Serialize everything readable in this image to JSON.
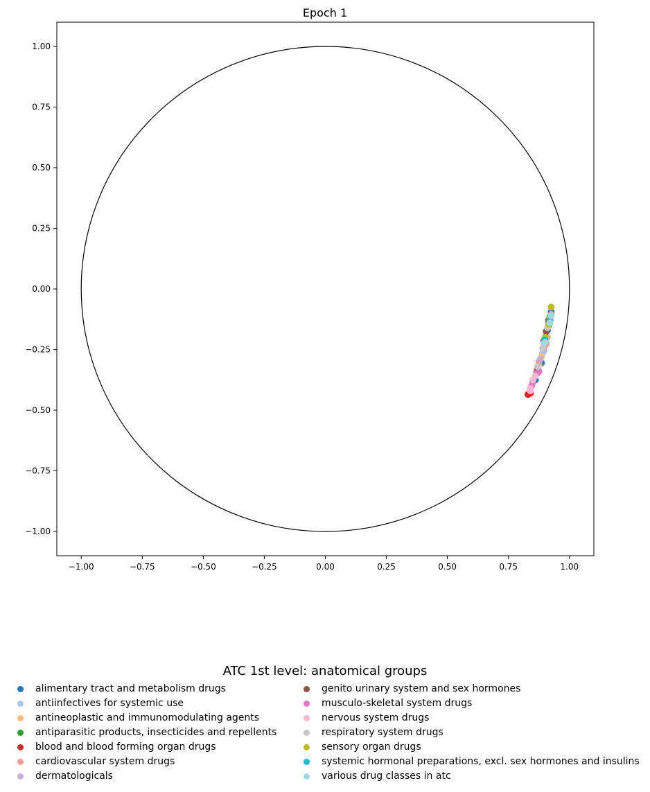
{
  "chart_data": {
    "type": "scatter",
    "title": "Epoch 1",
    "xlim": [
      -1.1,
      1.1
    ],
    "ylim": [
      -1.1,
      1.1
    ],
    "xticks": [
      -1.0,
      -0.75,
      -0.5,
      -0.25,
      0.0,
      0.25,
      0.5,
      0.75,
      1.0
    ],
    "yticks": [
      -1.0,
      -0.75,
      -0.5,
      -0.25,
      0.0,
      0.25,
      0.5,
      0.75,
      1.0
    ],
    "xtick_labels": [
      "−1.00",
      "−0.75",
      "−0.50",
      "−0.25",
      "0.00",
      "0.25",
      "0.50",
      "0.75",
      "1.00"
    ],
    "ytick_labels": [
      "−1.00",
      "−0.75",
      "−0.50",
      "−0.25",
      "0.00",
      "0.25",
      "0.50",
      "0.75",
      "1.00"
    ],
    "unit_circle": {
      "center": [
        0,
        0
      ],
      "radius": 1.0
    },
    "grid": false,
    "legend": {
      "title": "ATC 1st level: anatomical groups",
      "placement": "below",
      "columns": 2
    },
    "series": [
      {
        "name": "alimentary tract and metabolism drugs",
        "color": "#1f77b4",
        "points": [
          [
            0.925,
            -0.095
          ],
          [
            0.91,
            -0.17
          ],
          [
            0.885,
            -0.305
          ],
          [
            0.86,
            -0.375
          ],
          [
            0.915,
            -0.15
          ]
        ]
      },
      {
        "name": "antiinfectives for systemic use",
        "color": "#aec7e8",
        "points": [
          [
            0.92,
            -0.135
          ],
          [
            0.905,
            -0.19
          ],
          [
            0.89,
            -0.265
          ],
          [
            0.895,
            -0.255
          ],
          [
            0.915,
            -0.125
          ]
        ]
      },
      {
        "name": "antineoplastic and immunomodulating agents",
        "color": "#ffbb78",
        "points": [
          [
            0.91,
            -0.2
          ],
          [
            0.885,
            -0.28
          ],
          [
            0.875,
            -0.31
          ],
          [
            0.9,
            -0.235
          ]
        ]
      },
      {
        "name": "antiparasitic products, insecticides and repellents",
        "color": "#2ca02c",
        "points": [
          [
            0.92,
            -0.115
          ],
          [
            0.9,
            -0.205
          ],
          [
            0.915,
            -0.14
          ]
        ]
      },
      {
        "name": "blood and blood forming organ drugs",
        "color": "#d62728",
        "points": [
          [
            0.83,
            -0.435
          ],
          [
            0.84,
            -0.43
          ],
          [
            0.87,
            -0.345
          ]
        ]
      },
      {
        "name": "cardiovascular system drugs",
        "color": "#ff9896",
        "points": [
          [
            0.925,
            -0.105
          ],
          [
            0.905,
            -0.225
          ],
          [
            0.875,
            -0.3
          ],
          [
            0.865,
            -0.34
          ]
        ]
      },
      {
        "name": "dermatologicals",
        "color": "#c5b0d5",
        "points": [
          [
            0.895,
            -0.25
          ],
          [
            0.88,
            -0.29
          ],
          [
            0.905,
            -0.2
          ]
        ]
      },
      {
        "name": "genito urinary system and sex hormones",
        "color": "#8c564b",
        "points": [
          [
            0.915,
            -0.13
          ],
          [
            0.905,
            -0.175
          ],
          [
            0.895,
            -0.215
          ],
          [
            0.87,
            -0.33
          ]
        ]
      },
      {
        "name": "musculo-skeletal system drugs",
        "color": "#e377c2",
        "points": [
          [
            0.85,
            -0.385
          ],
          [
            0.865,
            -0.35
          ],
          [
            0.875,
            -0.34
          ],
          [
            0.845,
            -0.4
          ]
        ]
      },
      {
        "name": "nervous system drugs",
        "color": "#f7b6d2",
        "points": [
          [
            0.84,
            -0.41
          ],
          [
            0.85,
            -0.375
          ],
          [
            0.86,
            -0.36
          ],
          [
            0.84,
            -0.42
          ],
          [
            0.895,
            -0.225
          ]
        ]
      },
      {
        "name": "respiratory system drugs",
        "color": "#c7c7c7",
        "points": [
          [
            0.91,
            -0.16
          ],
          [
            0.89,
            -0.245
          ],
          [
            0.87,
            -0.32
          ]
        ]
      },
      {
        "name": "sensory organ drugs",
        "color": "#bcbd22",
        "points": [
          [
            0.925,
            -0.075
          ],
          [
            0.92,
            -0.12
          ],
          [
            0.9,
            -0.2
          ],
          [
            0.915,
            -0.145
          ]
        ]
      },
      {
        "name": "systemic hormonal preparations, excl. sex hormones and insulins",
        "color": "#17becf",
        "points": [
          [
            0.92,
            -0.13
          ],
          [
            0.9,
            -0.21
          ]
        ]
      },
      {
        "name": "various drug classes in atc",
        "color": "#9edae5",
        "points": [
          [
            0.925,
            -0.11
          ],
          [
            0.92,
            -0.14
          ],
          [
            0.9,
            -0.22
          ]
        ]
      }
    ]
  }
}
